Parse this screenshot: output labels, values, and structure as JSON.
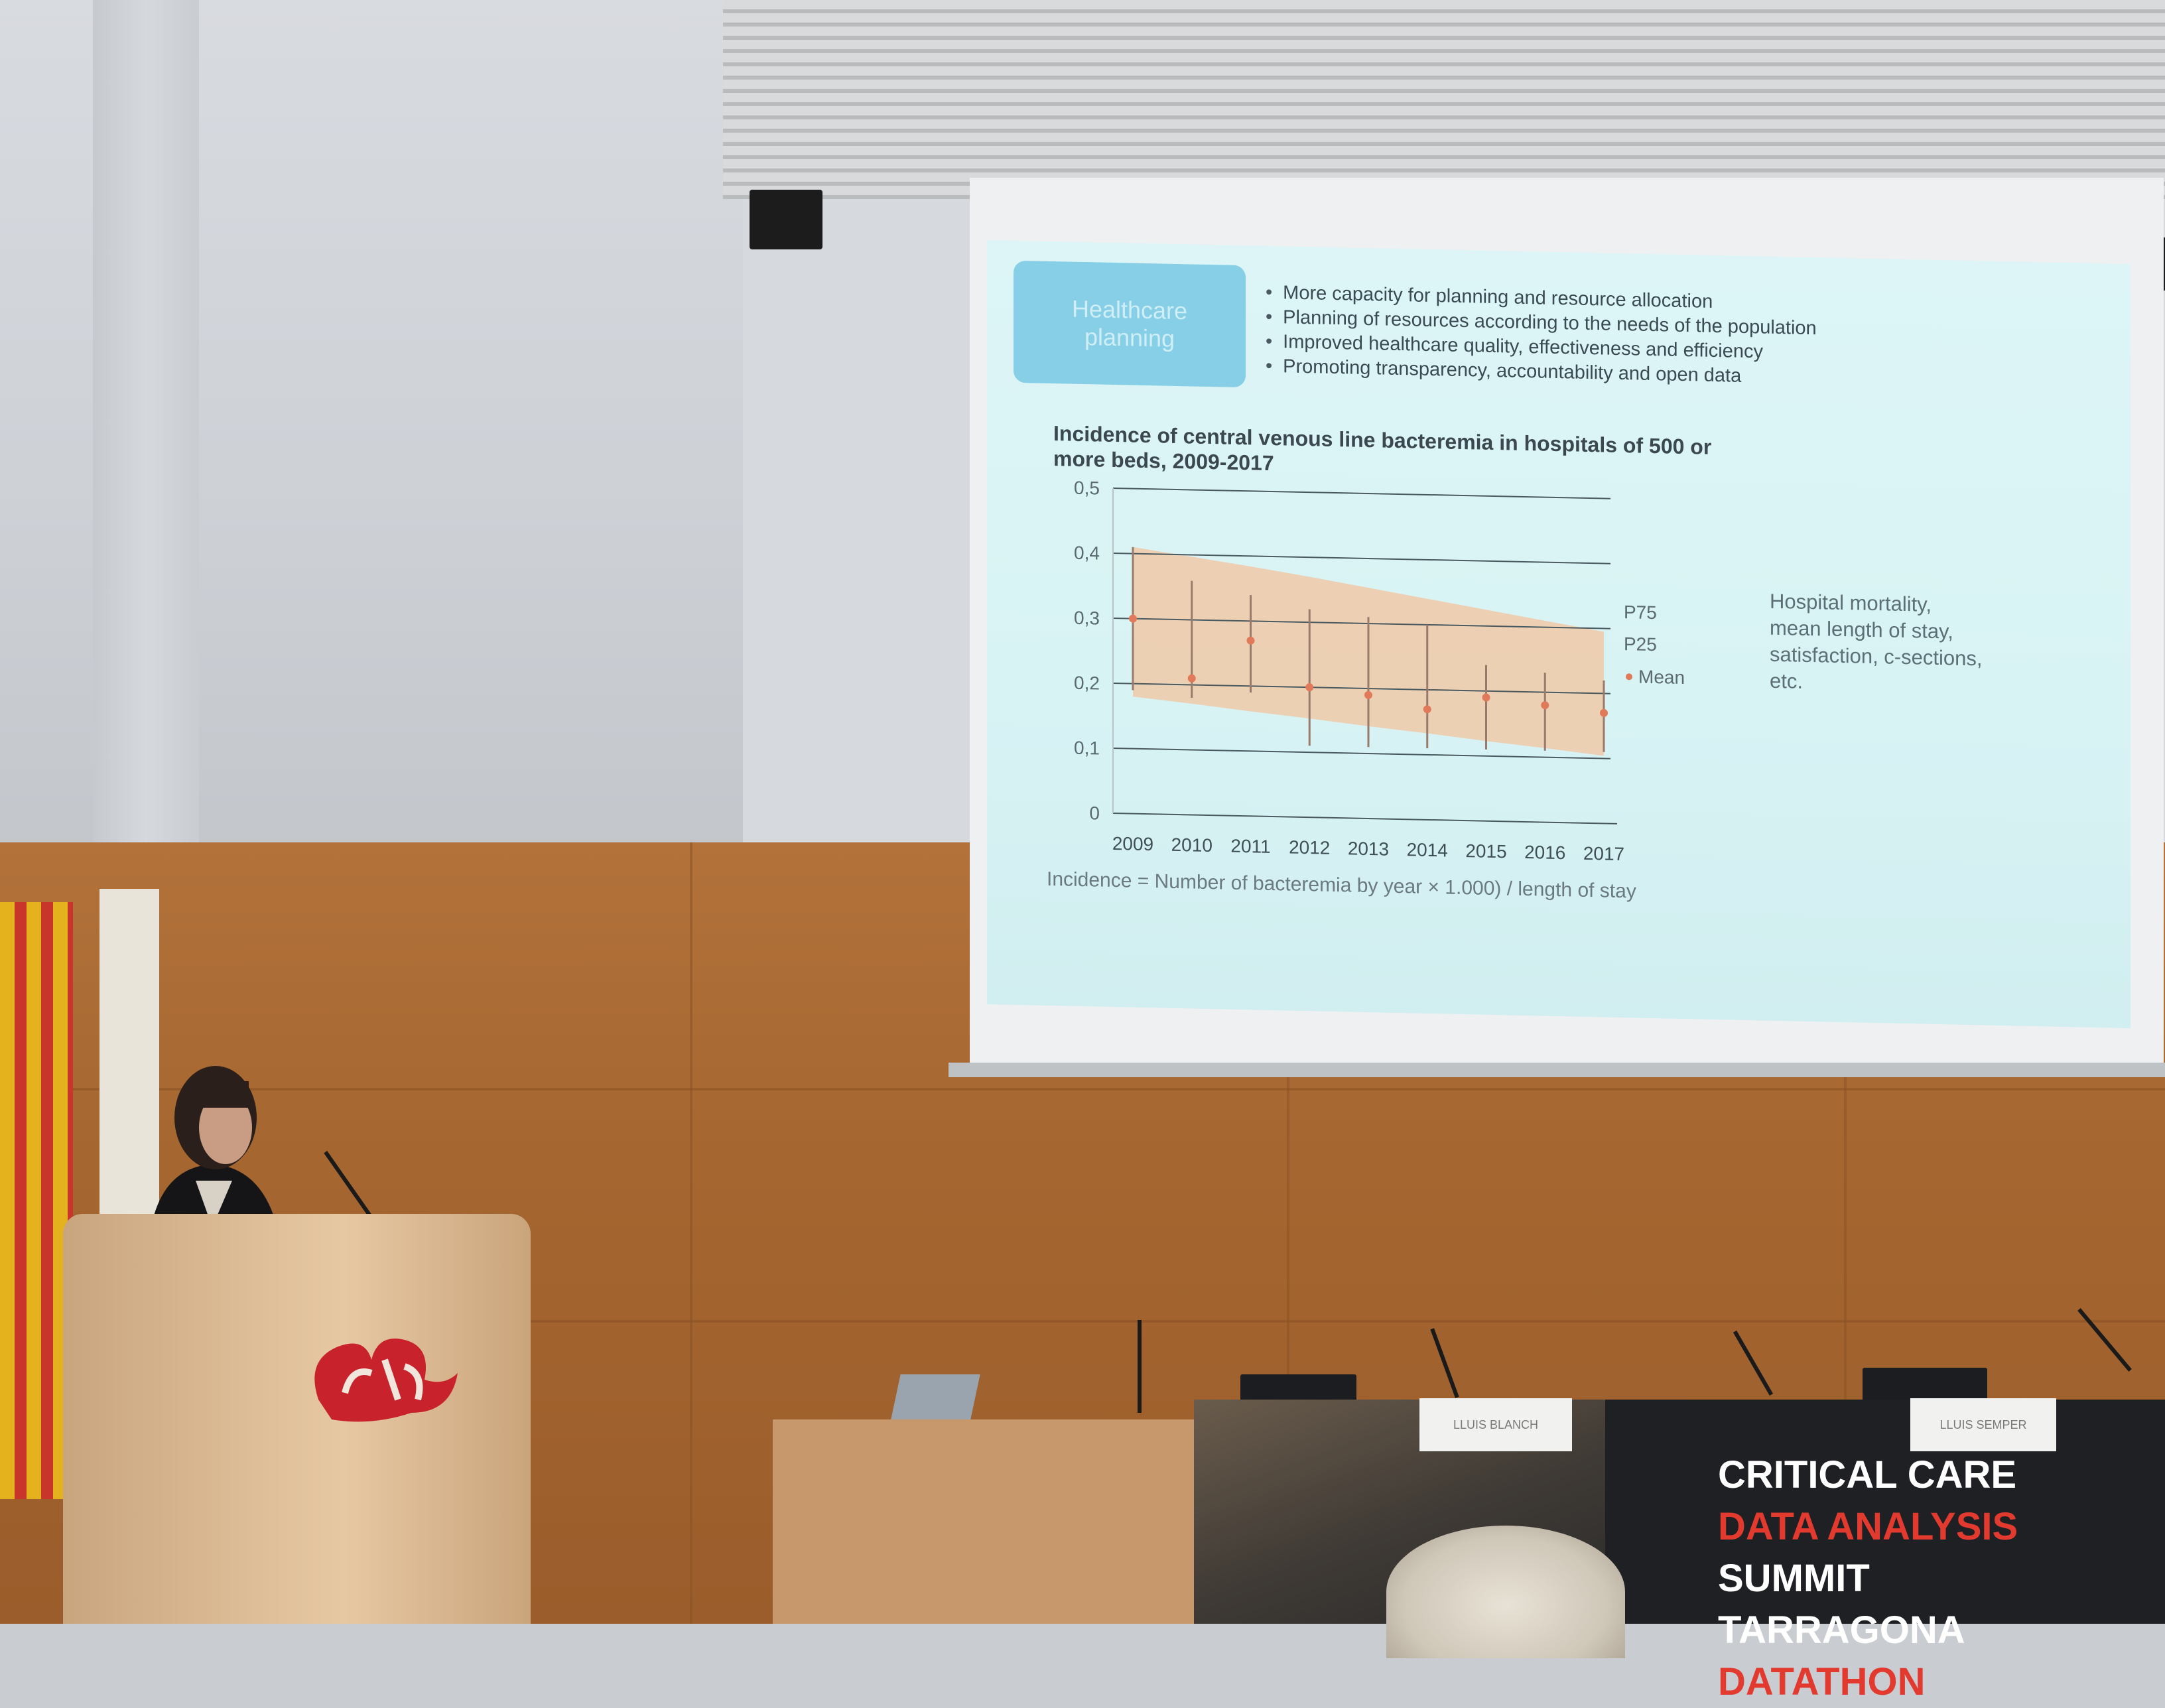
{
  "slide": {
    "heading_box": {
      "line1": "Healthcare",
      "line2": "planning"
    },
    "bullets": [
      "More capacity for planning and resource allocation",
      "Planning of resources according to the needs of the population",
      "Improved healthcare quality, effectiveness and efficiency",
      "Promoting transparency, accountability and open data"
    ],
    "side_note": "Hospital mortality, mean length of stay, satisfaction, c-sections, etc.",
    "formula": "Incidence = Number of bacteremia by year × 1.000) / length of stay"
  },
  "chart_data": {
    "type": "area",
    "title": "Incidence of central venous line bacteremia in hospitals of 500 or more beds, 2009-2017",
    "categories": [
      "2009",
      "2010",
      "2011",
      "2012",
      "2013",
      "2014",
      "2015",
      "2016",
      "2017"
    ],
    "y_ticks": [
      "0",
      "0,1",
      "0,2",
      "0,3",
      "0,4",
      "0,5"
    ],
    "ylim": [
      0,
      0.5
    ],
    "band": {
      "upper_name": "P75",
      "lower_name": "P25",
      "upper": [
        0.41,
        0.397,
        0.384,
        0.37,
        0.355,
        0.34,
        0.325,
        0.31,
        0.295
      ],
      "lower": [
        0.18,
        0.171,
        0.161,
        0.152,
        0.142,
        0.133,
        0.123,
        0.114,
        0.104
      ]
    },
    "series": [
      {
        "name": "Mean",
        "values": [
          0.3,
          0.21,
          0.27,
          0.2,
          0.19,
          0.17,
          0.19,
          0.18,
          0.17
        ]
      }
    ],
    "error_bars": {
      "high": [
        0.41,
        0.36,
        0.34,
        0.32,
        0.31,
        0.3,
        0.24,
        0.23,
        0.22
      ],
      "low": [
        0.19,
        0.18,
        0.19,
        0.11,
        0.11,
        0.11,
        0.11,
        0.11,
        0.11
      ]
    },
    "grid": true,
    "legend_position": "right",
    "colors": {
      "band": "#f0c9a8",
      "marker": "#e07a5a",
      "error_bar": "#9a7a6a",
      "grid": "#4a5a60"
    }
  },
  "banner": {
    "line1": "CRITICAL CARE",
    "line2_red": "DATA ANALYSIS",
    "line2_white": " SUMMIT",
    "line3_white": "TARRAGONA ",
    "line3_red": "DATATHON"
  },
  "namecards": [
    "LLUIS BLANCH",
    "LLUIS SEMPER"
  ]
}
